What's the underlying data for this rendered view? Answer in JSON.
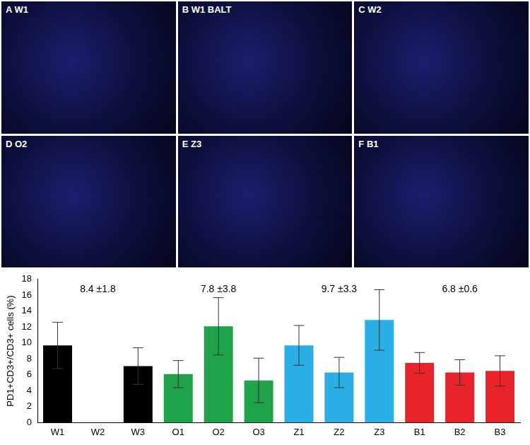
{
  "panels": [
    {
      "label": "A W1"
    },
    {
      "label": "B W1 BALT"
    },
    {
      "label": "C W2"
    },
    {
      "label": "D O2"
    },
    {
      "label": "E Z3"
    },
    {
      "label": "F B1"
    }
  ],
  "chart_data": {
    "type": "bar",
    "y_label": "PD1+CD3+/CD3+ cells (%)",
    "categories": [
      "W1",
      "W2",
      "W3",
      "O1",
      "O2",
      "O3",
      "Z1",
      "Z2",
      "Z3",
      "B1",
      "B2",
      "B3"
    ],
    "values": [
      9.7,
      null,
      7.1,
      6.1,
      12.1,
      5.3,
      9.7,
      6.3,
      12.9,
      7.5,
      6.3,
      6.5
    ],
    "errors": [
      2.9,
      null,
      2.3,
      1.7,
      3.6,
      2.8,
      2.5,
      1.9,
      3.8,
      1.3,
      1.6,
      1.9
    ],
    "colors": [
      "#000000",
      "#000000",
      "#000000",
      "#1fa34a",
      "#1fa34a",
      "#1fa34a",
      "#29aee6",
      "#29aee6",
      "#29aee6",
      "#e8232a",
      "#e8232a",
      "#e8232a"
    ],
    "annotations": [
      {
        "text": "8.4 ±1.8",
        "at": "W2"
      },
      {
        "text": "7.8 ±3.8",
        "at": "O2"
      },
      {
        "text": "9.7 ±3.3",
        "at": "Z2"
      },
      {
        "text": "6.8 ±0.6",
        "at": "B2"
      }
    ],
    "ylim": [
      0,
      18
    ],
    "yticks": [
      0,
      2,
      4,
      6,
      8,
      10,
      12,
      14,
      16,
      18
    ],
    "grid": false
  }
}
